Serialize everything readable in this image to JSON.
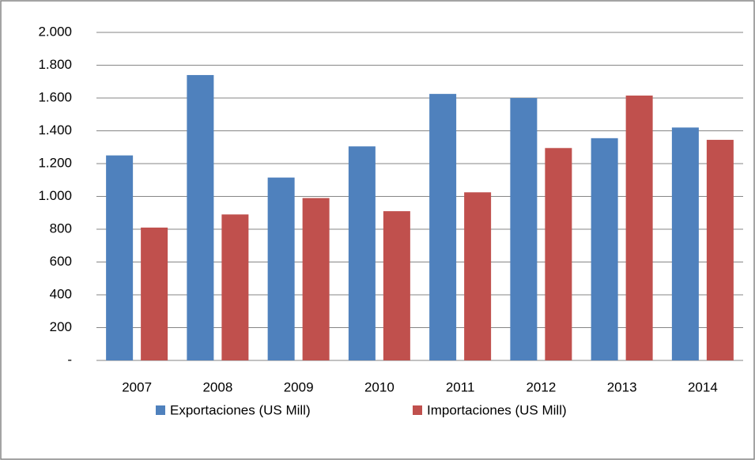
{
  "chart_data": {
    "type": "bar",
    "categories": [
      "2007",
      "2008",
      "2009",
      "2010",
      "2011",
      "2012",
      "2013",
      "2014"
    ],
    "series": [
      {
        "name": "Exportaciones (US Mill)",
        "color": "#4f81bd",
        "values": [
          1250,
          1740,
          1115,
          1305,
          1625,
          1600,
          1355,
          1420
        ]
      },
      {
        "name": "Importaciones (US Mill)",
        "color": "#c0504d",
        "values": [
          810,
          890,
          990,
          910,
          1025,
          1295,
          1615,
          1345
        ]
      }
    ],
    "ylim": [
      0,
      2000
    ],
    "yticks": [
      {
        "value": 0,
        "label": "-"
      },
      200,
      400,
      600,
      800,
      {
        "value": 1000,
        "label": "1.000"
      },
      {
        "value": 1200,
        "label": "1.200"
      },
      {
        "value": 1400,
        "label": "1.400"
      },
      {
        "value": 1600,
        "label": "1.600"
      },
      {
        "value": 1800,
        "label": "1.800"
      },
      {
        "value": 2000,
        "label": "2.000"
      }
    ],
    "grid": true,
    "legend": "bottom"
  }
}
